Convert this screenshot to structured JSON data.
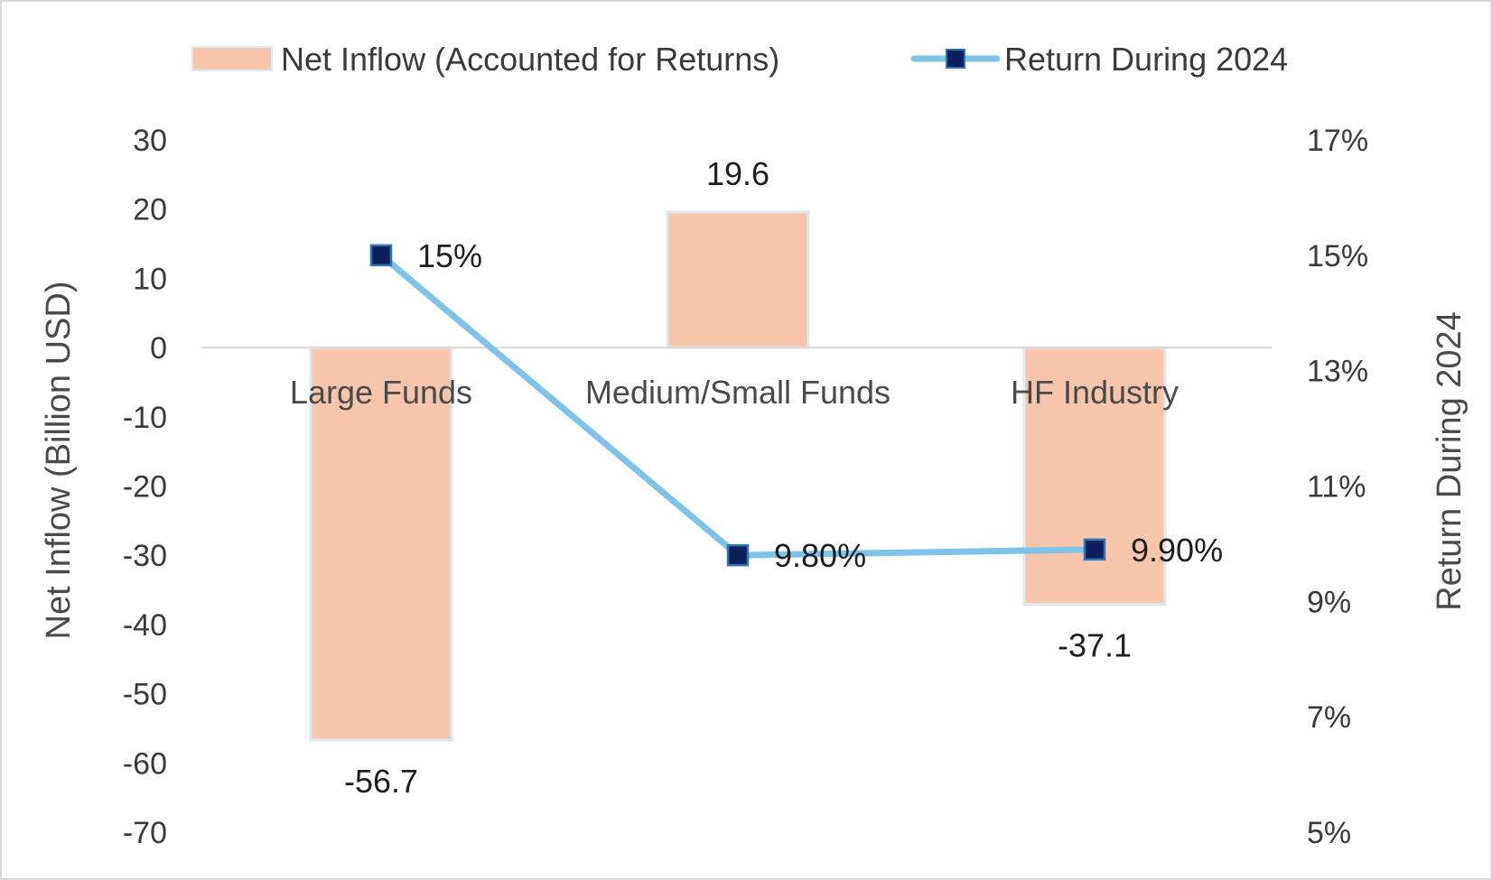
{
  "chart_data": {
    "type": "bar",
    "title": "",
    "categories": [
      "Large Funds",
      "Medium/Small Funds",
      "HF Industry"
    ],
    "series": [
      {
        "name": "Net Inflow (Accounted for Returns)",
        "kind": "bar",
        "axis": "left",
        "values": [
          -56.7,
          19.6,
          -37.1
        ],
        "labels": [
          "-56.7",
          "19.6",
          "-37.1"
        ]
      },
      {
        "name": "Return During 2024",
        "kind": "line",
        "axis": "right",
        "values": [
          0.15,
          0.098,
          0.099
        ],
        "labels": [
          "15%",
          "9.80%",
          "9.90%"
        ]
      }
    ],
    "y_left": {
      "label": "Net  Inflow (Billion USD)",
      "min": -70,
      "max": 30,
      "ticks": [
        30,
        20,
        10,
        0,
        -10,
        -20,
        -30,
        -40,
        -50,
        -60,
        -70
      ],
      "tick_labels": [
        "30",
        "20",
        "10",
        "0",
        "-10",
        "-20",
        "-30",
        "-40",
        "-50",
        "-60",
        "-70"
      ]
    },
    "y_right": {
      "label": "Return During 2024",
      "min": 0.05,
      "max": 0.17,
      "ticks": [
        0.17,
        0.15,
        0.13,
        0.11,
        0.09,
        0.07,
        0.05
      ],
      "tick_labels": [
        "17%",
        "15%",
        "13%",
        "11%",
        "9%",
        "7%",
        "5%"
      ]
    },
    "legend": {
      "placement": "top",
      "entries": [
        "Net Inflow (Accounted for Returns)",
        "Return During 2024"
      ]
    },
    "grid": false,
    "colors": {
      "bar_fill": "#f6c5aa",
      "bar_edge": "#dbe9f6",
      "line": "#7ec3e8",
      "marker_fill": "#0b1f5c",
      "marker_edge": "#2e75b6",
      "frame": "#d9d9d9",
      "text": "#3a3a3a"
    }
  }
}
